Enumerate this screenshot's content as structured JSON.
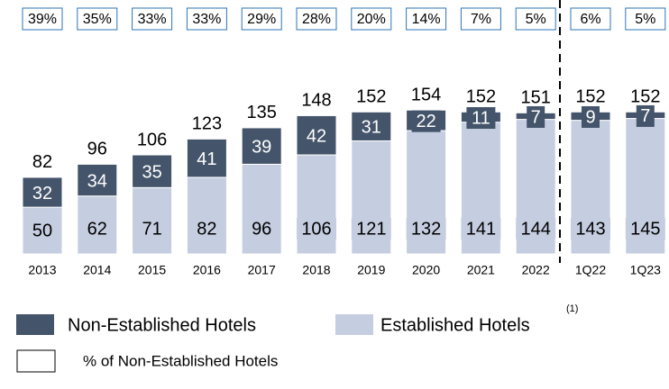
{
  "chart_data": {
    "type": "stacked_bar",
    "categories": [
      "2013",
      "2014",
      "2015",
      "2016",
      "2017",
      "2018",
      "2019",
      "2020",
      "2021",
      "2022",
      "1Q22",
      "1Q23"
    ],
    "series": [
      {
        "name": "Established Hotels",
        "color": "#c5cde0",
        "values": [
          50,
          62,
          71,
          82,
          96,
          106,
          121,
          132,
          141,
          144,
          143,
          145
        ]
      },
      {
        "name": "Non-Established Hotels",
        "color": "#44546a",
        "values": [
          32,
          34,
          35,
          41,
          39,
          42,
          31,
          22,
          11,
          7,
          9,
          7
        ]
      }
    ],
    "totals": [
      82,
      96,
      106,
      123,
      135,
      148,
      152,
      154,
      152,
      151,
      152,
      152
    ],
    "percent_non_established": {
      "name": "% of Non-Established Hotels",
      "values": [
        39,
        35,
        33,
        33,
        29,
        28,
        20,
        14,
        7,
        5,
        6,
        5
      ],
      "value_labels": [
        "39%",
        "35%",
        "33%",
        "33%",
        "29%",
        "28%",
        "20%",
        "14%",
        "7%",
        "5%",
        "6%",
        "5%"
      ]
    },
    "footnote": "(1)",
    "ylim": [
      0,
      160
    ]
  }
}
